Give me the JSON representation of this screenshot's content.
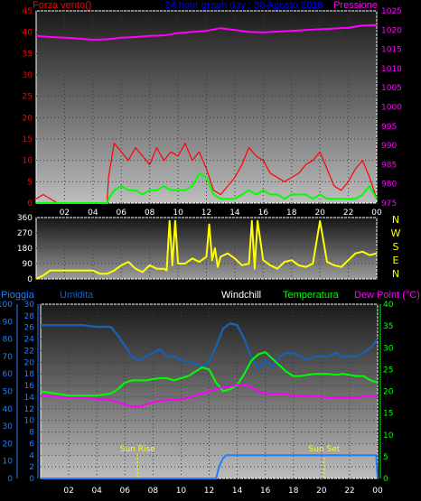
{
  "header": {
    "left": "Forza vento()",
    "center": "24 hour graph day : 30 Agosto 2018",
    "right": "Pressione"
  },
  "colors": {
    "wind": "#ff0000",
    "gust": "#00ff00",
    "pressure": "#ff00ff",
    "direction": "#ffff00",
    "humidity": "#1a5fb0",
    "temperature": "#00ff00",
    "dewpoint": "#ff00ff",
    "rain": "#1f7fff",
    "windchill": "#ffffff"
  },
  "x_tick_labels": [
    "02",
    "04",
    "06",
    "08",
    "10",
    "12",
    "14",
    "16",
    "18",
    "20",
    "22",
    "00"
  ],
  "panel_wind": {
    "left_ticks": [
      "45",
      "40",
      "35",
      "30",
      "25",
      "20",
      "15",
      "10",
      "5",
      "0"
    ],
    "right_ticks": [
      "1025",
      "1020",
      "1015",
      "1010",
      "1005",
      "1000",
      "995",
      "990",
      "985",
      "980",
      "975"
    ]
  },
  "panel_dir": {
    "left_ticks": [
      "360",
      "270",
      "180",
      "90",
      "0"
    ],
    "right_labels": [
      "N",
      "W",
      "S",
      "E",
      "N"
    ]
  },
  "panel_bottom": {
    "legend": {
      "pioggia": "Pioggia",
      "umidita": "Umidita",
      "windchill": "Windchill",
      "temperatura": "Temperatura",
      "dewpoint": "Dew Point (°C)"
    },
    "rain_ticks": [
      "30",
      "28",
      "26",
      "24",
      "22",
      "20",
      "18",
      "16",
      "14",
      "12",
      "10",
      "8",
      "6",
      "4",
      "2",
      "0"
    ],
    "humidity_ticks": [
      "100",
      "90",
      "80",
      "70",
      "60",
      "50",
      "40",
      "30",
      "20",
      "10",
      "0"
    ],
    "temp_ticks": [
      "40",
      "35",
      "30",
      "25",
      "20",
      "15",
      "10",
      "5",
      "0"
    ],
    "sunrise_label": "Sun Rise",
    "sunset_label": "Sun Set"
  },
  "chart_data": [
    {
      "type": "line",
      "xlabel": "",
      "ylim_left": [
        0,
        45
      ],
      "ylim_right": [
        975,
        1025
      ],
      "series": [
        {
          "name": "Forza vento()",
          "axis": "left",
          "x": [
            0,
            0.5,
            1,
            1.5,
            2,
            2.5,
            3,
            3.5,
            4,
            4.5,
            5,
            5.1,
            5.5,
            6,
            6.5,
            7,
            7.5,
            8,
            8.5,
            9,
            9.5,
            10,
            10.5,
            11,
            11.5,
            12,
            12.5,
            13,
            13.5,
            14,
            14.5,
            15,
            15.5,
            16,
            16.5,
            17,
            17.5,
            18,
            18.5,
            19,
            19.5,
            20,
            20.5,
            21,
            21.5,
            22,
            22.5,
            23,
            23.5,
            24
          ],
          "y": [
            1,
            2,
            1,
            0,
            0,
            0,
            0,
            0,
            0,
            0,
            0,
            6,
            14,
            12,
            10,
            13,
            11,
            9,
            13,
            10,
            12,
            11,
            14,
            10,
            12,
            8,
            3,
            2,
            4,
            6,
            9,
            13,
            11,
            10,
            7,
            6,
            5,
            6,
            7,
            9,
            10,
            12,
            8,
            4,
            3,
            5,
            8,
            10,
            6,
            1
          ]
        },
        {
          "name": "",
          "axis": "left",
          "x": [
            0,
            1,
            2,
            3,
            4,
            5,
            5.1,
            5.5,
            6,
            6.5,
            7,
            7.5,
            8,
            8.5,
            9,
            9.5,
            10,
            10.5,
            11,
            11.5,
            12,
            12.5,
            13,
            13.5,
            14,
            14.5,
            15,
            15.5,
            16,
            16.5,
            17,
            17.5,
            18,
            18.5,
            19,
            19.5,
            20,
            20.5,
            21,
            21.5,
            22,
            22.5,
            23,
            23.5,
            24
          ],
          "y": [
            0,
            0,
            0,
            0,
            0,
            0,
            1,
            3,
            4,
            3,
            3,
            2,
            3,
            3,
            4,
            3,
            3,
            3,
            4,
            7,
            6,
            2,
            1,
            1,
            1,
            2,
            3,
            2,
            3,
            2,
            2,
            1,
            2,
            2,
            2,
            1,
            2,
            1,
            1,
            1,
            1,
            1,
            2,
            4,
            1
          ]
        },
        {
          "name": "Pressione",
          "axis": "right",
          "x": [
            0,
            1,
            2,
            3,
            4,
            5,
            6,
            7,
            8,
            9,
            10,
            11,
            12,
            13,
            14,
            15,
            16,
            17,
            18,
            19,
            20,
            21,
            22,
            23,
            24
          ],
          "y": [
            1018.5,
            1018.2,
            1018,
            1017.8,
            1017.5,
            1017.6,
            1018.0,
            1018.2,
            1018.5,
            1018.6,
            1019.2,
            1019.5,
            1019.8,
            1020.5,
            1020.0,
            1019.5,
            1019.4,
            1019.6,
            1019.8,
            1020.0,
            1020.2,
            1020.4,
            1020.6,
            1021.2,
            1021.3
          ]
        }
      ]
    },
    {
      "type": "line",
      "ylim": [
        0,
        360
      ],
      "series": [
        {
          "name": "",
          "x": [
            0,
            0.5,
            1,
            1.5,
            2,
            2.5,
            3,
            3.5,
            4,
            4.5,
            5,
            5.5,
            6,
            6.5,
            7,
            7.5,
            8,
            8.5,
            9,
            9.2,
            9.4,
            9.6,
            9.8,
            10,
            10.5,
            11,
            11.5,
            12,
            12.2,
            12.4,
            12.6,
            12.8,
            13,
            13.5,
            14,
            14.5,
            15,
            15.2,
            15.4,
            15.6,
            16,
            16.5,
            17,
            17.5,
            18,
            18.5,
            19,
            19.5,
            20,
            20.5,
            21,
            21.5,
            22,
            22.5,
            23,
            23.5,
            24
          ],
          "y": [
            0,
            20,
            50,
            50,
            50,
            50,
            50,
            50,
            50,
            30,
            30,
            50,
            80,
            100,
            60,
            40,
            80,
            60,
            60,
            50,
            340,
            80,
            340,
            90,
            90,
            120,
            100,
            130,
            320,
            110,
            180,
            70,
            130,
            150,
            120,
            80,
            90,
            340,
            60,
            340,
            110,
            80,
            60,
            100,
            110,
            80,
            70,
            90,
            340,
            100,
            80,
            70,
            110,
            150,
            160,
            140,
            150
          ]
        }
      ]
    },
    {
      "type": "line",
      "ylim_rain": [
        0,
        30
      ],
      "ylim_humidity": [
        0,
        100
      ],
      "ylim_temp": [
        0,
        40
      ],
      "series": [
        {
          "name": "Umidita",
          "axis": "humidity",
          "x": [
            0,
            1,
            2,
            3,
            4,
            5,
            5.5,
            6,
            6.5,
            7,
            7.5,
            8,
            8.5,
            9,
            9.5,
            10,
            10.5,
            11,
            11.5,
            12,
            12.5,
            13,
            13.5,
            14,
            14.5,
            15,
            15.5,
            16,
            16.5,
            17,
            17.5,
            18,
            18.5,
            19,
            19.5,
            20,
            20.5,
            21,
            21.5,
            22,
            22.5,
            23,
            23.5,
            24
          ],
          "y": [
            88,
            88,
            88,
            88,
            87,
            87,
            82,
            76,
            70,
            68,
            70,
            72,
            74,
            70,
            70,
            68,
            67,
            66,
            64,
            67,
            76,
            86,
            89,
            88,
            80,
            70,
            63,
            68,
            64,
            70,
            72,
            72,
            70,
            68,
            70,
            70,
            70,
            72,
            70,
            70,
            70,
            72,
            75,
            80
          ]
        },
        {
          "name": "Temperatura",
          "axis": "temp",
          "x": [
            0,
            1,
            2,
            3,
            4,
            5,
            5.5,
            6,
            6.5,
            7,
            7.5,
            8,
            8.5,
            9,
            9.5,
            10,
            10.5,
            11,
            11.5,
            12,
            12.5,
            13,
            13.5,
            14,
            14.5,
            15,
            15.5,
            16,
            16.5,
            17,
            17.5,
            18,
            18.5,
            19,
            19.5,
            20,
            20.5,
            21,
            21.5,
            22,
            22.5,
            23,
            23.5,
            24
          ],
          "y": [
            20,
            19.5,
            19,
            19,
            19,
            19.5,
            20.5,
            22,
            22.5,
            22.5,
            22.5,
            22.8,
            23,
            23,
            22.5,
            23,
            23.5,
            24.5,
            25.5,
            25,
            22,
            20,
            20.5,
            21.5,
            24,
            27,
            28.5,
            29,
            27.5,
            26,
            24.5,
            23.5,
            23.5,
            23.8,
            24,
            24,
            24,
            23.8,
            24,
            23.8,
            23.5,
            23.5,
            22.5,
            22
          ]
        },
        {
          "name": "Dew Point (°C)",
          "axis": "temp",
          "x": [
            0,
            1,
            2,
            3,
            4,
            5,
            5.5,
            6,
            6.5,
            7,
            7.5,
            8,
            8.5,
            9,
            9.5,
            10,
            10.5,
            11,
            11.5,
            12,
            12.5,
            13,
            13.5,
            14,
            14.5,
            15,
            15.5,
            16,
            16.5,
            17,
            17.5,
            18,
            18.5,
            19,
            19.5,
            20,
            20.5,
            21,
            21.5,
            22,
            22.5,
            23,
            23.5,
            24
          ],
          "y": [
            19,
            18.8,
            18.5,
            18.5,
            18.3,
            18,
            17.5,
            17,
            16.5,
            16.5,
            17,
            17.5,
            17.8,
            18,
            18,
            18.2,
            18.5,
            19,
            19.5,
            20,
            20.5,
            21,
            21,
            21.5,
            21.5,
            21,
            20,
            19.5,
            19.5,
            19.5,
            19.5,
            19,
            19,
            19,
            18.8,
            18.8,
            18.5,
            18.5,
            18.5,
            18.5,
            18.5,
            18.8,
            18.8,
            19
          ]
        },
        {
          "name": "Pioggia",
          "axis": "rain",
          "x": [
            0,
            12.5,
            12.7,
            13,
            13.2,
            14,
            16,
            18,
            20,
            22,
            23.9,
            24
          ],
          "y": [
            0,
            0,
            2,
            3.5,
            4,
            4,
            4,
            4,
            4,
            4,
            4,
            0
          ]
        }
      ],
      "sunrise_hour": 6.9,
      "sunset_hour": 20.2
    }
  ]
}
